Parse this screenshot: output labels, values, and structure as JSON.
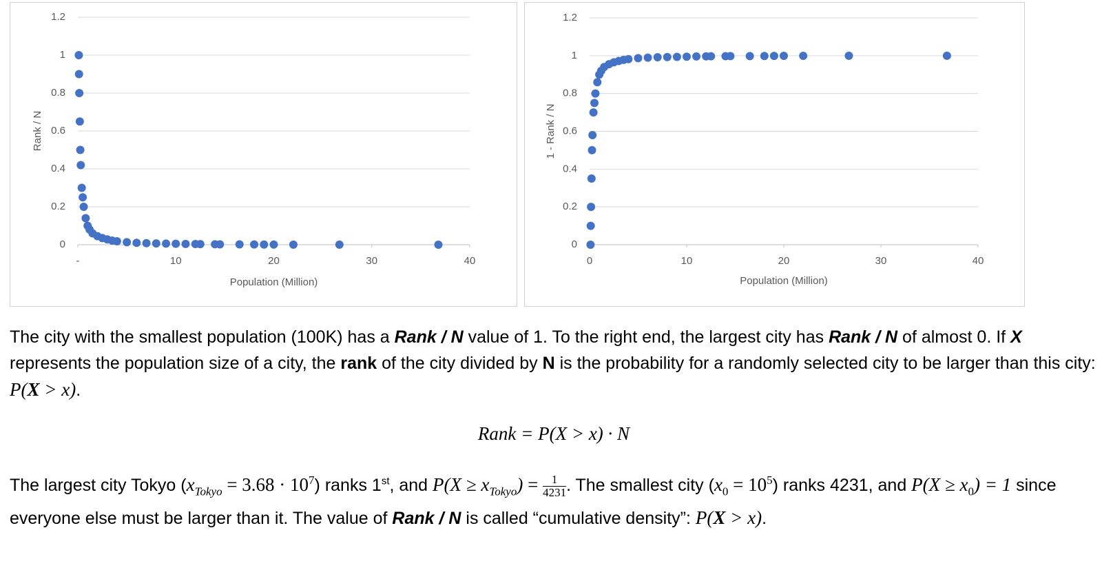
{
  "chart_data": [
    {
      "type": "scatter",
      "xlabel": "Population (Million)",
      "ylabel": "Rank / N",
      "color": "#4472c4",
      "x": [
        0.1,
        0.12,
        0.15,
        0.2,
        0.25,
        0.3,
        0.4,
        0.5,
        0.6,
        0.8,
        1,
        1.2,
        1.5,
        2,
        2.5,
        3,
        3.5,
        4,
        5,
        6,
        7,
        8,
        9,
        10,
        11,
        12,
        12.5,
        14,
        14.5,
        16.5,
        18,
        19,
        20,
        22,
        26.7,
        36.8
      ],
      "values": [
        1,
        0.9,
        0.8,
        0.65,
        0.5,
        0.42,
        0.3,
        0.25,
        0.2,
        0.14,
        0.1,
        0.08,
        0.06,
        0.045,
        0.035,
        0.028,
        0.022,
        0.018,
        0.013,
        0.01,
        0.008,
        0.007,
        0.006,
        0.005,
        0.004,
        0.0035,
        0.003,
        0.0025,
        0.002,
        0.0018,
        0.0015,
        0.001,
        0.0008,
        0.0005,
        0.0003,
        0.0002
      ],
      "xlim": [
        0,
        40
      ],
      "xticks": [
        {
          "value": 0,
          "label": "-"
        },
        10,
        20,
        30,
        40
      ],
      "ylim": [
        0,
        1.2
      ],
      "yticks": [
        0,
        0.2,
        0.4,
        0.6,
        0.8,
        1,
        1.2
      ],
      "grid": true
    },
    {
      "type": "scatter",
      "xlabel": "Population (Million)",
      "ylabel": "1 - Rank / N",
      "color": "#4472c4",
      "x": [
        0.1,
        0.12,
        0.15,
        0.2,
        0.25,
        0.3,
        0.4,
        0.5,
        0.6,
        0.8,
        1,
        1.2,
        1.5,
        2,
        2.5,
        3,
        3.5,
        4,
        5,
        6,
        7,
        8,
        9,
        10,
        11,
        12,
        12.5,
        14,
        14.5,
        16.5,
        18,
        19,
        20,
        22,
        26.7,
        36.8
      ],
      "values": [
        0,
        0.1,
        0.2,
        0.35,
        0.5,
        0.58,
        0.7,
        0.75,
        0.8,
        0.86,
        0.9,
        0.92,
        0.94,
        0.955,
        0.965,
        0.972,
        0.978,
        0.982,
        0.987,
        0.99,
        0.992,
        0.993,
        0.994,
        0.995,
        0.996,
        0.9965,
        0.997,
        0.9975,
        0.998,
        0.9982,
        0.9985,
        0.999,
        0.9992,
        0.9995,
        0.9997,
        0.9998
      ],
      "xlim": [
        0,
        40
      ],
      "xticks": [
        {
          "value": 0,
          "label": "0"
        },
        10,
        20,
        30,
        40
      ],
      "ylim": [
        0,
        1.2
      ],
      "yticks": [
        0,
        0.2,
        0.4,
        0.6,
        0.8,
        1,
        1.2
      ],
      "grid": true
    }
  ],
  "text": {
    "paragraphs": [
      [
        "The city with the smallest population (100K) has a ",
        "Rank / N",
        " value of 1. To the right end, the largest city has ",
        "Rank / N",
        " of almost 0. If ",
        "X",
        " represents the population size of a city, the ",
        "rank",
        " of the city divided by ",
        "N",
        " is the probability for a randomly selected city to be larger than this city: ",
        "P(",
        "X",
        " > x)",
        "."
      ],
      [
        "Rank = P(X > x) · N"
      ],
      [
        "The largest city Tokyo (",
        "x",
        "Tokyo",
        " = 3.68 · 10",
        "7",
        ") ranks 1",
        "st",
        ", and ",
        "P(X ≥ x",
        "Tokyo",
        ")",
        " = ",
        "1",
        "4231",
        ". The smallest city (",
        "x",
        "0",
        " = 10",
        "5",
        ") ranks 4231, and ",
        "P(X ≥ x",
        "0",
        ") = 1",
        " since everyone else must be larger than it. The value of ",
        "Rank / N",
        " is called “cumulative density”: ",
        "P(",
        "X",
        " > x)",
        "."
      ]
    ]
  }
}
